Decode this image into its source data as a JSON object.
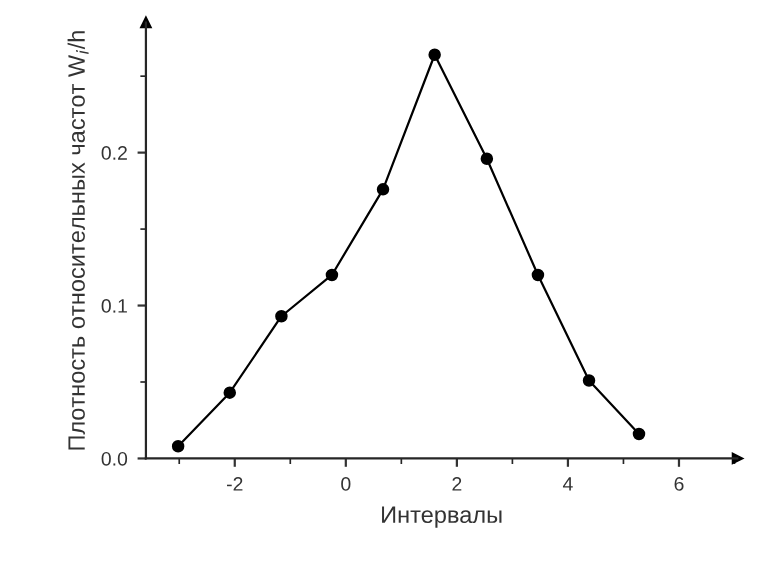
{
  "chart_data": {
    "type": "line",
    "xlabel": "Интервалы",
    "ylabel": "Плотность относительных частот W$_{i}$/h",
    "x": [
      -3.02,
      -2.09,
      -1.16,
      -0.25,
      0.67,
      1.6,
      2.54,
      3.46,
      4.38,
      5.28
    ],
    "series": [
      {
        "color": "#000000",
        "values": [
          0.008,
          0.043,
          0.093,
          0.12,
          0.176,
          0.264,
          0.196,
          0.12,
          0.051,
          0.016
        ]
      }
    ],
    "xlim": [
      -3.6,
      7.05
    ],
    "ylim": [
      0,
      0.285
    ],
    "xticks": [
      -2,
      0,
      2,
      4,
      6
    ],
    "yticks": [
      {
        "value": 0,
        "label": "0.0"
      },
      0.1,
      0.2
    ],
    "marker": "circle",
    "line_style": "solid",
    "grid": false,
    "legend": false
  }
}
